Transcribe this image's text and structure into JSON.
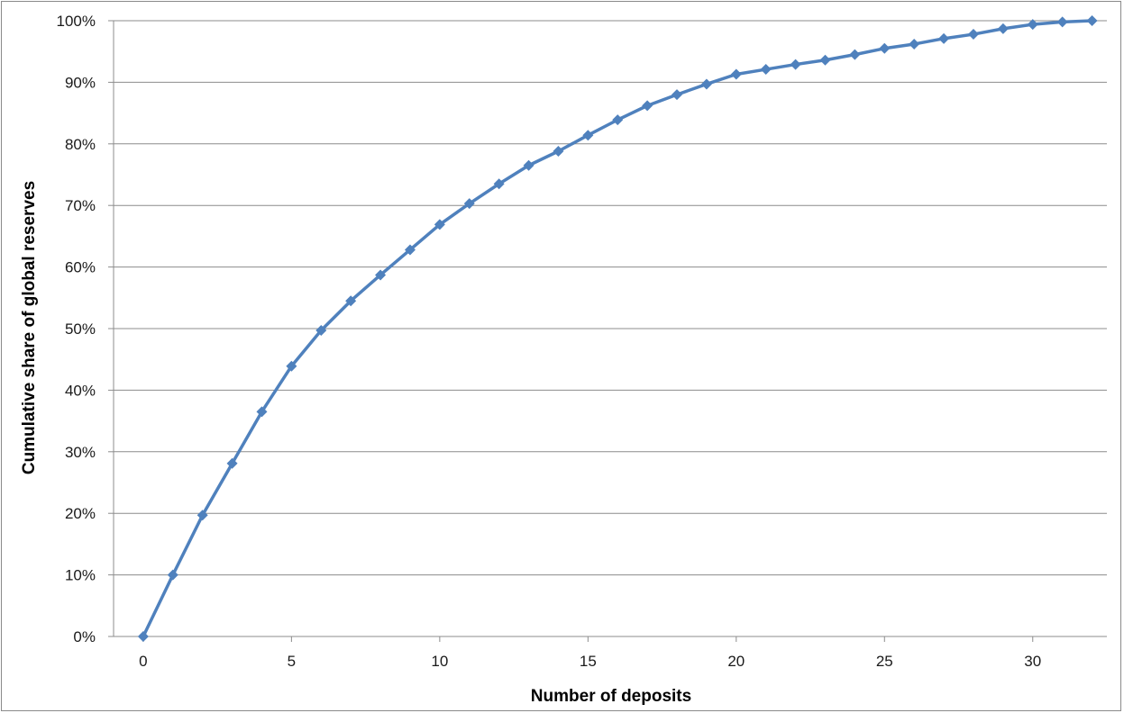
{
  "chart_data": {
    "type": "line",
    "title": "",
    "xlabel": "Number of deposits",
    "ylabel": "Cumulative share of global reserves",
    "xlim": [
      -1,
      32.5
    ],
    "ylim": [
      0,
      100
    ],
    "x_ticks": [
      0,
      5,
      10,
      15,
      20,
      25,
      30
    ],
    "x_tick_labels": [
      "0",
      "5",
      "10",
      "15",
      "20",
      "25",
      "30"
    ],
    "y_ticks": [
      0,
      10,
      20,
      30,
      40,
      50,
      60,
      70,
      80,
      90,
      100
    ],
    "y_tick_labels": [
      "0%",
      "10%",
      "20%",
      "30%",
      "40%",
      "50%",
      "60%",
      "70%",
      "80%",
      "90%",
      "100%"
    ],
    "grid": "horizontal",
    "legend": "none",
    "series": [
      {
        "color": "#4f81bd",
        "marker": "diamond",
        "x": [
          0,
          1,
          2,
          3,
          4,
          5,
          6,
          7,
          8,
          9,
          10,
          11,
          12,
          13,
          14,
          15,
          16,
          17,
          18,
          19,
          20,
          21,
          22,
          23,
          24,
          25,
          26,
          27,
          28,
          29,
          30,
          31,
          32
        ],
        "y": [
          0,
          10,
          19.7,
          28.1,
          36.5,
          43.9,
          49.7,
          54.5,
          58.7,
          62.8,
          66.9,
          70.3,
          73.5,
          76.5,
          78.8,
          81.4,
          83.9,
          86.2,
          88.0,
          89.7,
          91.3,
          92.1,
          92.9,
          93.6,
          94.5,
          95.5,
          96.2,
          97.1,
          97.8,
          98.7,
          99.4,
          99.8,
          100
        ]
      }
    ]
  }
}
